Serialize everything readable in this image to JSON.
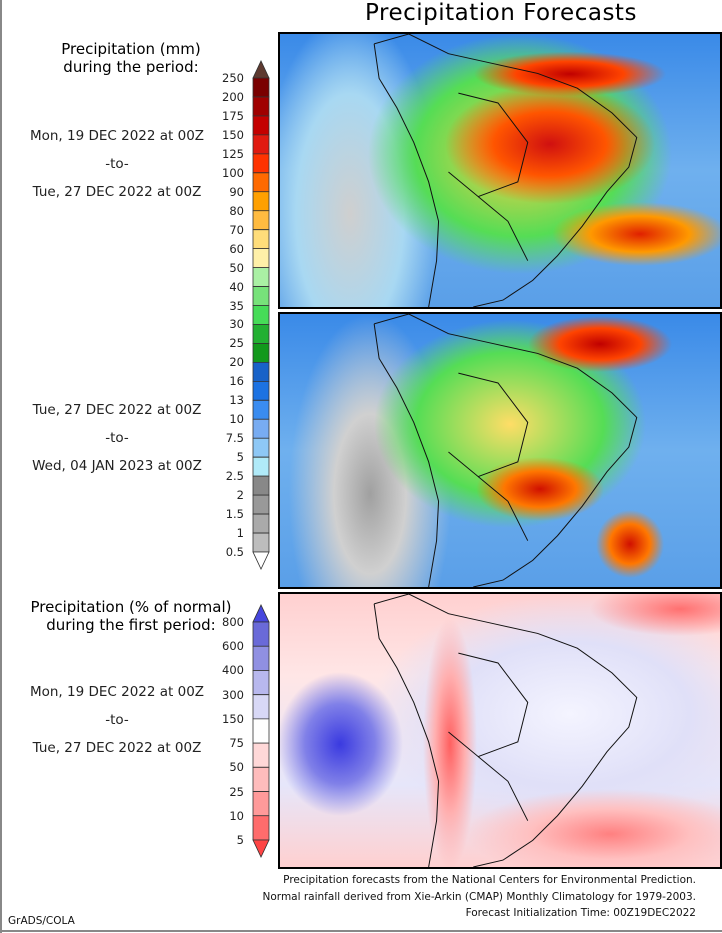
{
  "title": "Precipitation Forecasts",
  "panel1": {
    "heading_line1": "Precipitation (mm)",
    "heading_line2": "during the period:",
    "start": "Mon, 19 DEC 2022 at 00Z",
    "sep": "-to-",
    "end": "Tue, 27 DEC 2022 at 00Z"
  },
  "panel2": {
    "start": "Tue, 27 DEC 2022 at 00Z",
    "sep": "-to-",
    "end": "Wed, 04 JAN 2023 at 00Z"
  },
  "panel3": {
    "heading_line1": "Precipitation (% of normal)",
    "heading_line2": "during the first period:",
    "start": "Mon, 19 DEC 2022 at 00Z",
    "sep": "-to-",
    "end": "Tue, 27 DEC 2022 at 00Z"
  },
  "mm_scale": {
    "labels": [
      "250",
      "200",
      "175",
      "150",
      "125",
      "100",
      "90",
      "80",
      "70",
      "60",
      "50",
      "40",
      "35",
      "30",
      "25",
      "20",
      "16",
      "13",
      "10",
      "7.5",
      "5",
      "2.5",
      "2",
      "1.5",
      "1",
      "0.5"
    ],
    "colors": [
      "#7a0000",
      "#a00000",
      "#c40000",
      "#e01a10",
      "#ff3300",
      "#ff6a00",
      "#ffa000",
      "#ffbb40",
      "#ffdd7a",
      "#fff0a8",
      "#aaf0a4",
      "#77e27a",
      "#46dc58",
      "#22b032",
      "#12991c",
      "#1862c8",
      "#1c72e2",
      "#3a8cf0",
      "#78acf2",
      "#8ec8f6",
      "#b0eaf8",
      "#888888",
      "#999999",
      "#aaaaaa",
      "#bdbdbd"
    ],
    "top_color": "#5e3a30",
    "bottom_color": "#ffffff"
  },
  "pct_scale": {
    "labels": [
      "800",
      "600",
      "400",
      "300",
      "150",
      "75",
      "50",
      "25",
      "10",
      "5"
    ],
    "colors": [
      "#6a6ad8",
      "#9090e2",
      "#b8b8ee",
      "#d8d8f6",
      "#ffffff",
      "#ffd8d8",
      "#ffbcbc",
      "#ff9a9a",
      "#ff6c6c"
    ],
    "top_color": "#4646dd",
    "bottom_color": "#ff4444"
  },
  "footer": {
    "line1": "Precipitation forecasts from the National Centers for Environmental Prediction.",
    "line2": "Normal rainfall derived from Xie-Arkin (CMAP) Monthly Climatology for 1979-2003.",
    "line3": "Forecast Initialization Time: 00Z19DEC2022"
  },
  "credit": "GrADS/COLA"
}
